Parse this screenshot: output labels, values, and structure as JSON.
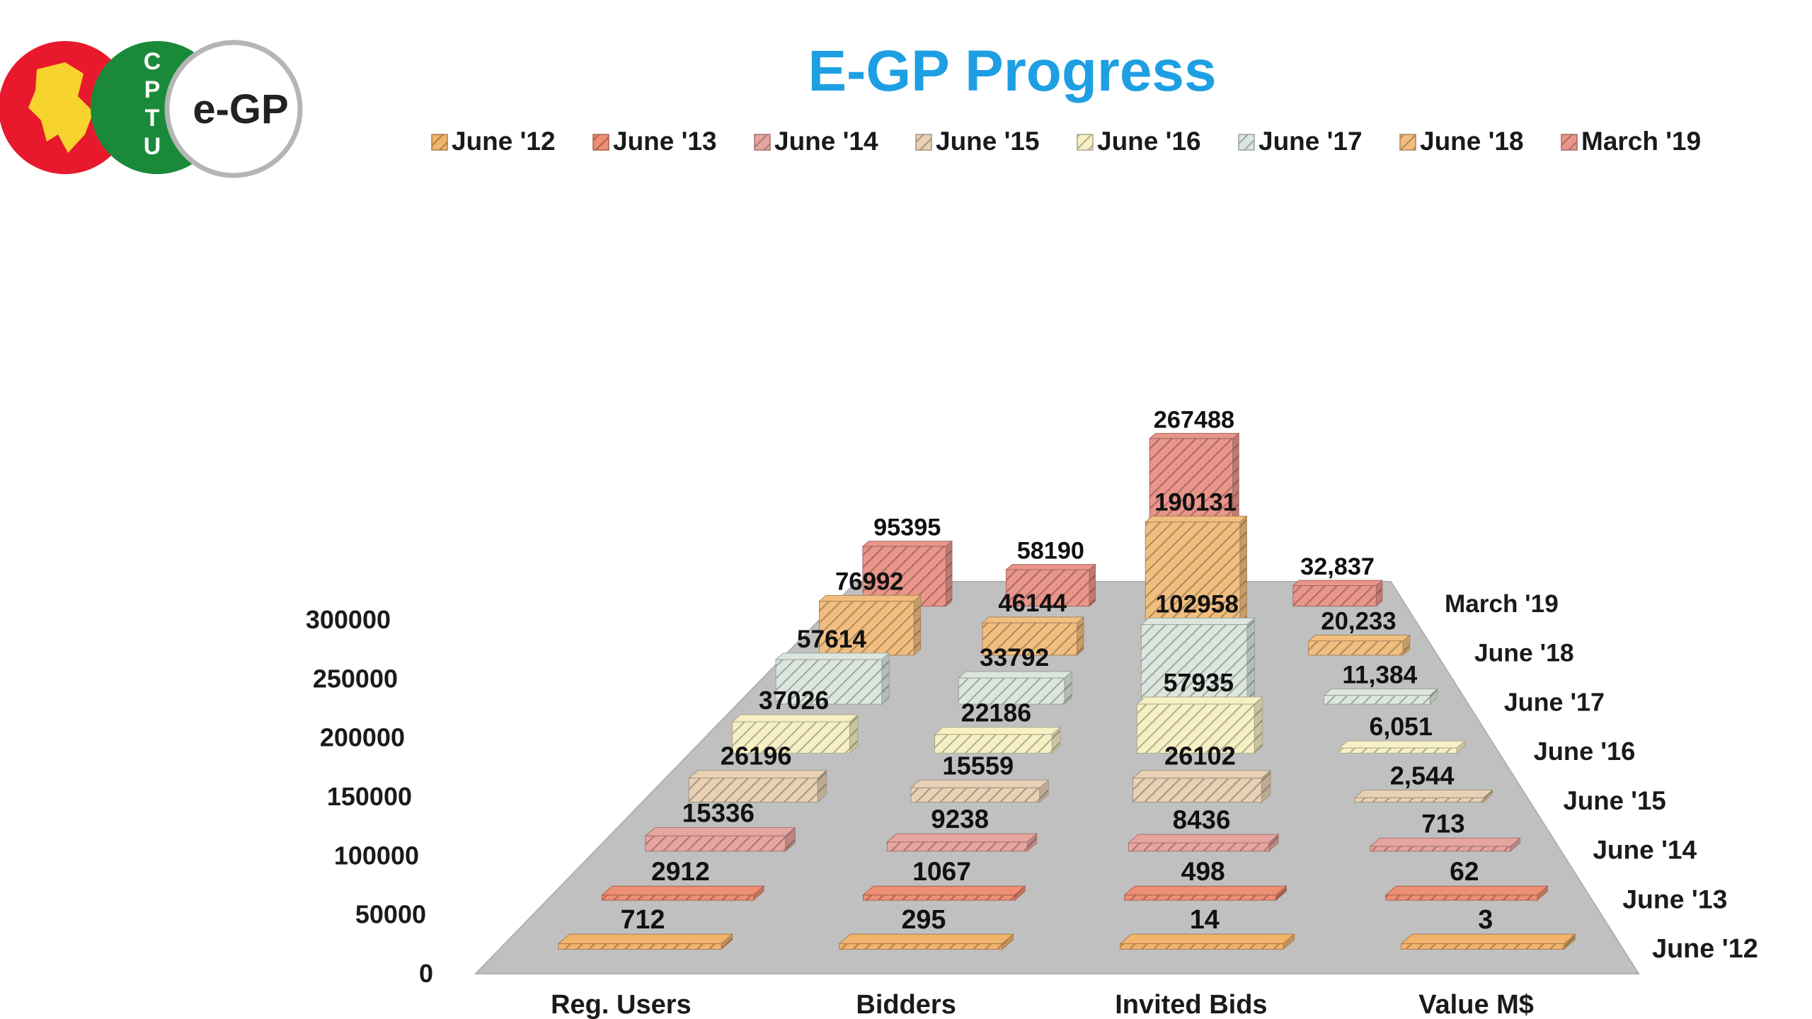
{
  "logo": {
    "letters": [
      "C",
      "P",
      "T",
      "U"
    ],
    "text": "e-GP",
    "colors": {
      "red": "#E8192C",
      "green": "#1A8A3A",
      "yellow": "#F6D32D"
    }
  },
  "chart_data": {
    "type": "bar",
    "subtype": "3d-grouped-depth",
    "title": "E-GP Progress",
    "xlabel": "",
    "ylabel": "",
    "ylim": [
      0,
      300000
    ],
    "yticks": [
      "0",
      "50000",
      "100000",
      "150000",
      "200000",
      "250000",
      "300000"
    ],
    "categories": [
      "Reg. Users",
      "Bidders",
      "Invited Bids",
      "Value M$"
    ],
    "legend_position": "top",
    "series": [
      {
        "name": "June '12",
        "color": "#F2B36B",
        "values": [
          712,
          295,
          14,
          3
        ],
        "labels": [
          "712",
          "295",
          "14",
          "3"
        ]
      },
      {
        "name": "June '13",
        "color": "#EE8E72",
        "values": [
          2912,
          1067,
          498,
          62
        ],
        "labels": [
          "2912",
          "1067",
          "498",
          "62"
        ]
      },
      {
        "name": "June '14",
        "color": "#E6A59E",
        "values": [
          15336,
          9238,
          8436,
          713
        ],
        "labels": [
          "15336",
          "9238",
          "8436",
          "713"
        ]
      },
      {
        "name": "June '15",
        "color": "#E8D1B4",
        "values": [
          26196,
          15559,
          26102,
          2544
        ],
        "labels": [
          "26196",
          "15559",
          "26102",
          "2,544"
        ]
      },
      {
        "name": "June '16",
        "color": "#F6F0C4",
        "values": [
          37026,
          22186,
          57935,
          6051
        ],
        "labels": [
          "37026",
          "22186",
          "57935",
          "6,051"
        ]
      },
      {
        "name": "June '17",
        "color": "#DCE6DE",
        "values": [
          57614,
          33792,
          102958,
          11384
        ],
        "labels": [
          "57614",
          "33792",
          "102958",
          "11,384"
        ]
      },
      {
        "name": "June '18",
        "color": "#F2BE80",
        "values": [
          76992,
          46144,
          190131,
          20233
        ],
        "labels": [
          "76992",
          "46144",
          "190131",
          "20,233"
        ]
      },
      {
        "name": "March '19",
        "color": "#E9958A",
        "values": [
          95395,
          58190,
          267488,
          32837
        ],
        "labels": [
          "95395",
          "58190",
          "267488",
          "32,837"
        ]
      }
    ]
  }
}
